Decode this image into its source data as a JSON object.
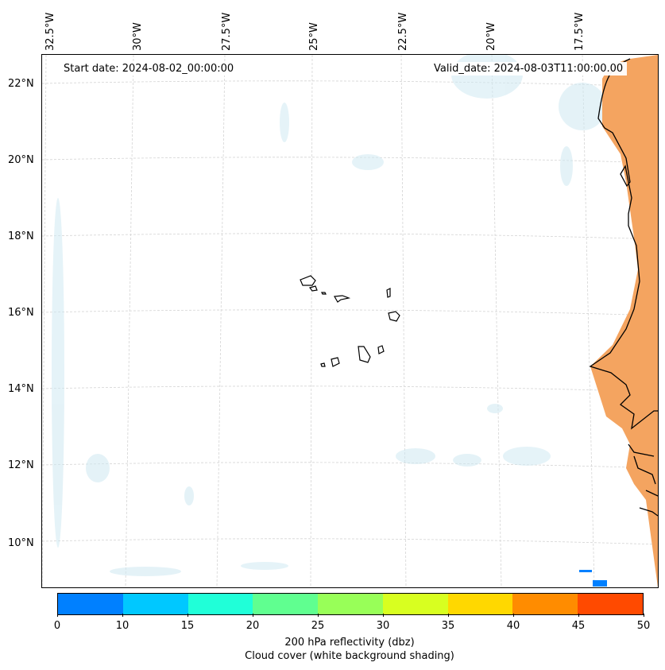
{
  "map": {
    "start_date": "Start date: 2024-08-02_00:00:00",
    "valid_date": "Valid_date: 2024-08-03T11:00:00.00",
    "lon_labels": [
      "32.5°W",
      "30°W",
      "27.5°W",
      "25°W",
      "22.5°W",
      "20°W",
      "17.5°W"
    ],
    "lat_labels": [
      "22°N",
      "20°N",
      "18°N",
      "16°N",
      "14°N",
      "12°N",
      "10°N"
    ],
    "extent": {
      "lon_min": -33,
      "lon_max": -16,
      "lat_min": 9,
      "lat_max": 22.8
    }
  },
  "colorbar": {
    "ticks": [
      "0",
      "10",
      "15",
      "20",
      "25",
      "30",
      "35",
      "40",
      "45",
      "50"
    ],
    "colors": [
      "#0080ff",
      "#00c8ff",
      "#20ffd8",
      "#60ff90",
      "#98ff58",
      "#d8ff20",
      "#ffd800",
      "#ff8c00",
      "#ff4a00"
    ],
    "label_line1": "200 hPa reflectivity (dbz)",
    "label_line2": "Cloud cover (white background shading)"
  },
  "colors": {
    "land_fill": "#f4a460",
    "cloud_fill": "#d6eef4",
    "coast": "#000000",
    "grid": "#cccccc"
  }
}
